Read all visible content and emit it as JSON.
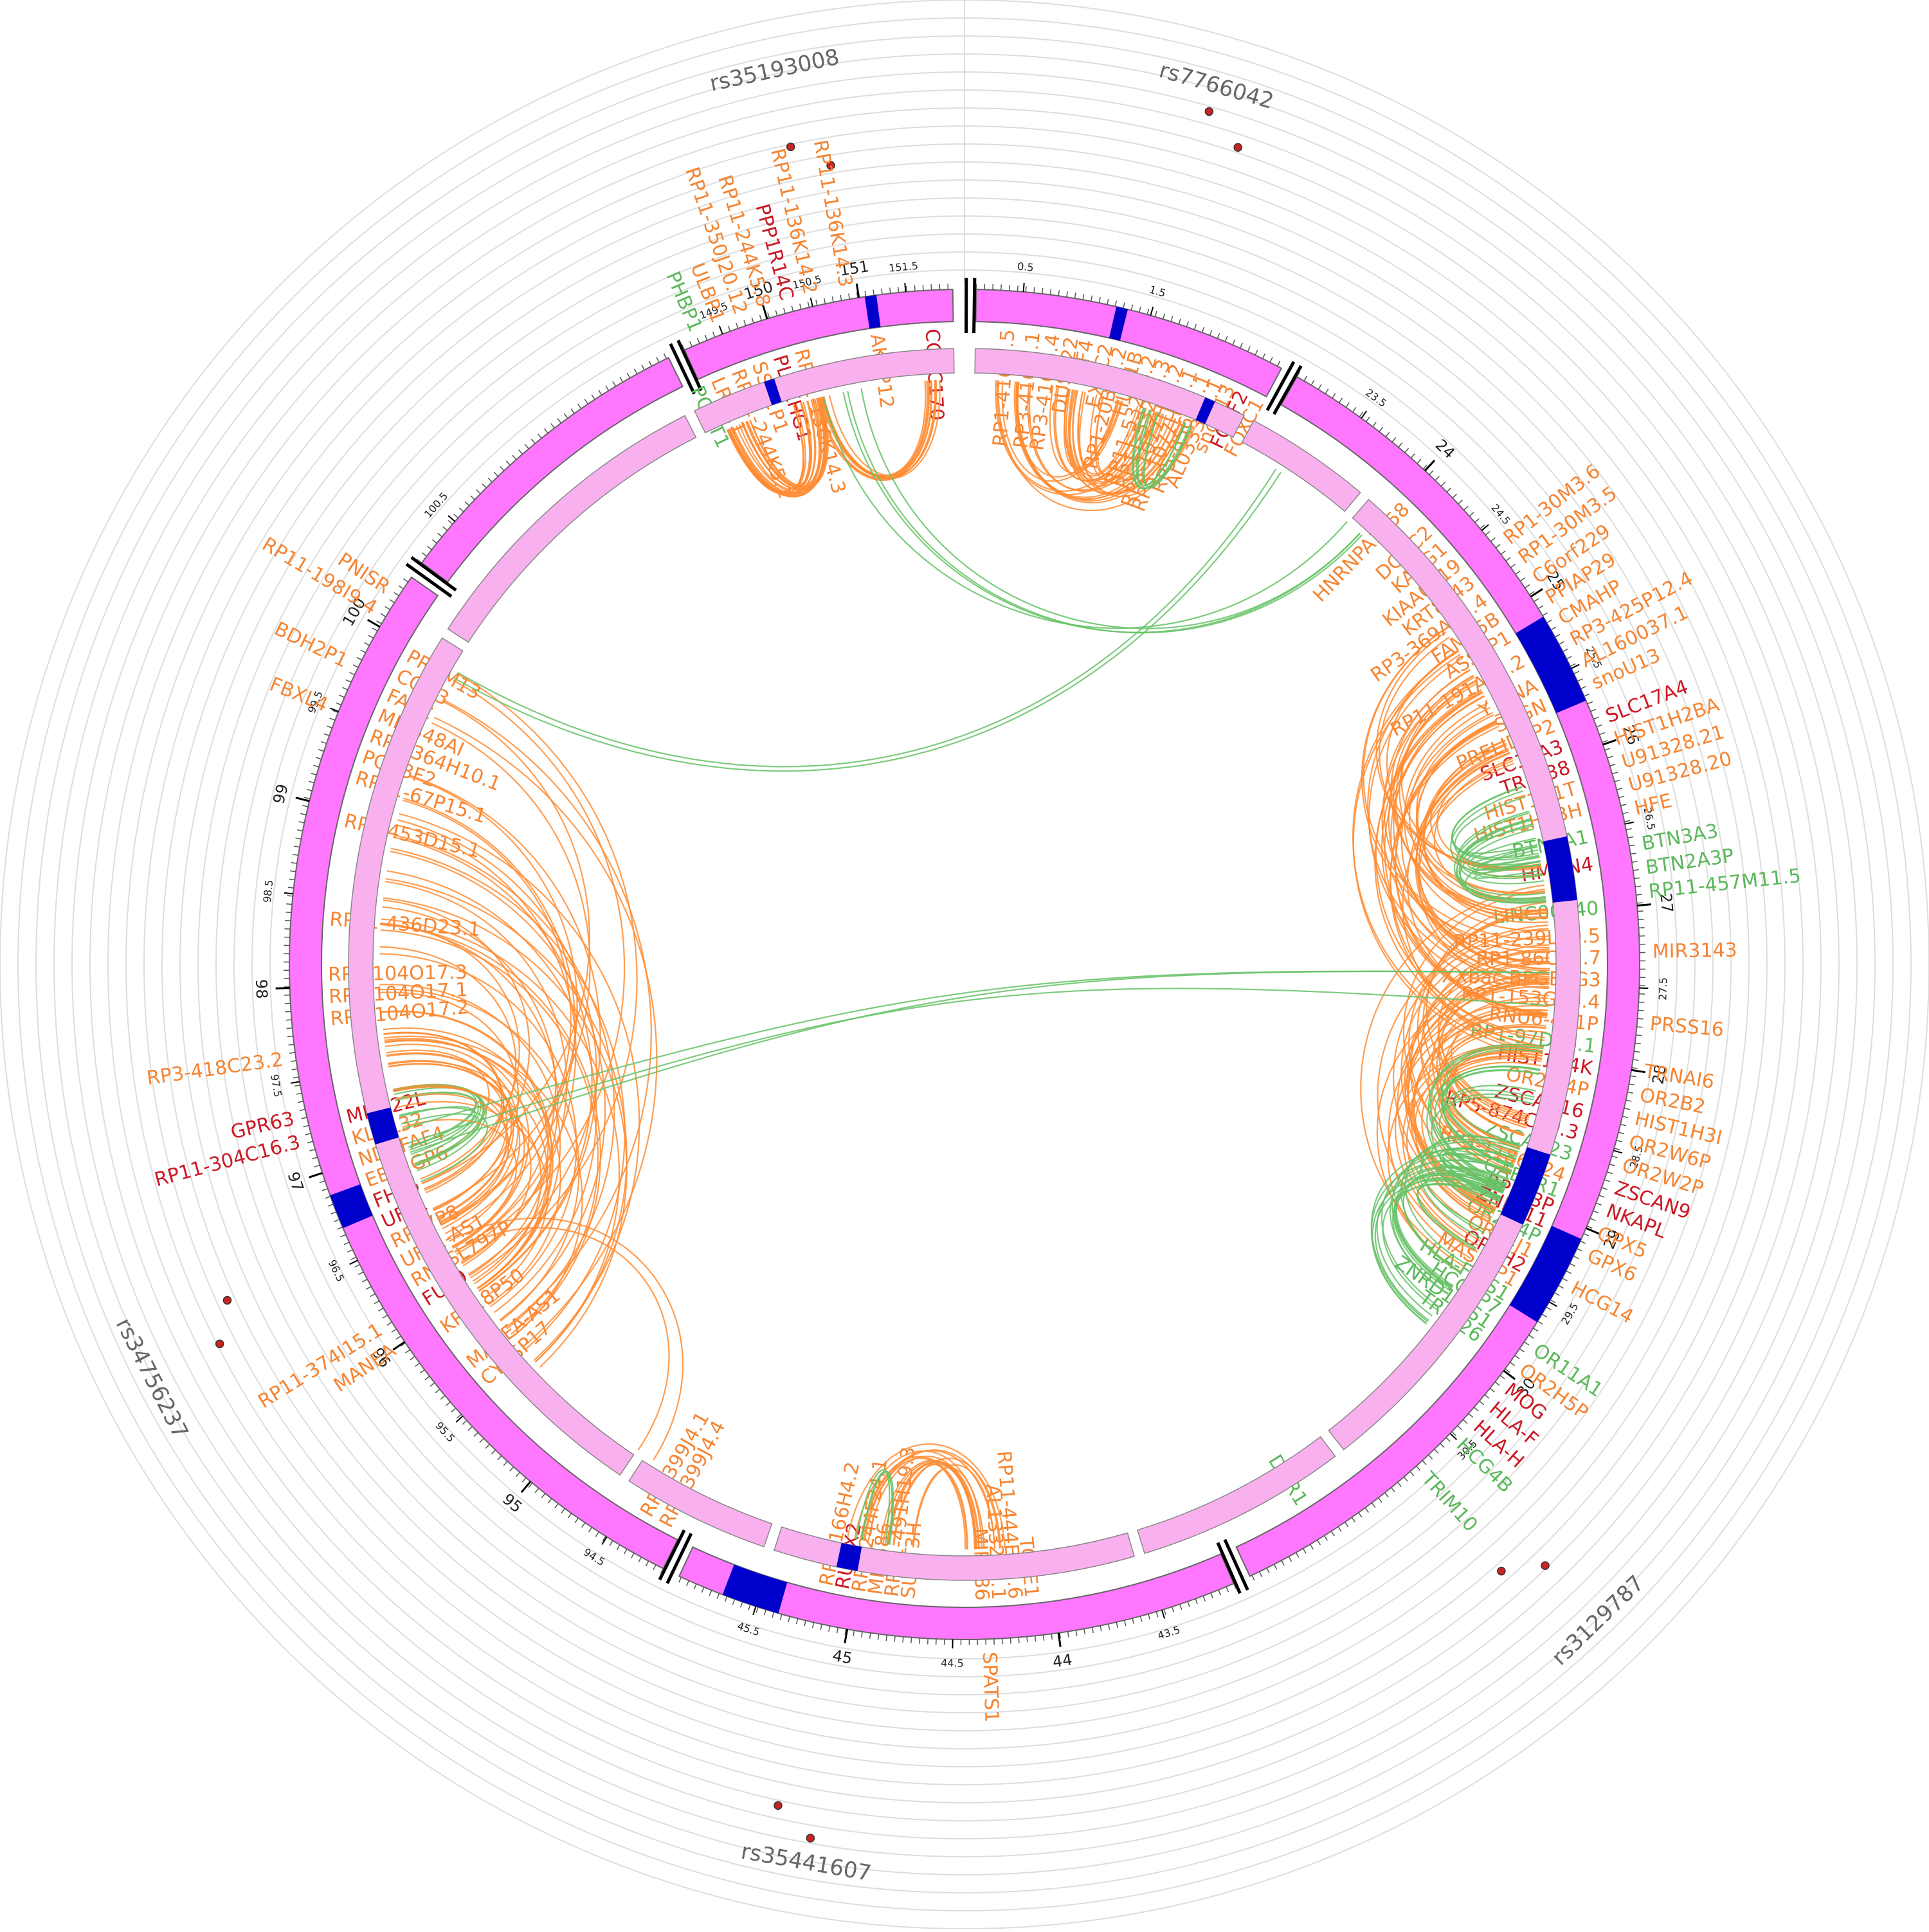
{
  "snps": [
    {
      "id": "rs35193008",
      "angle": -12
    },
    {
      "id": "rs7766042",
      "angle": 16
    },
    {
      "id": "rs3129787",
      "angle": 136
    },
    {
      "id": "rs35441607",
      "angle": 190
    },
    {
      "id": "rs34756237",
      "angle": 243
    }
  ],
  "colors": {
    "chrom": "#ff77ff",
    "chrom_stroke": "#666666",
    "highlight": "#0000cc",
    "inner_ring": "#f9b0ee",
    "link_orange": "#ff8c33",
    "link_green": "#66c266",
    "label_orange": "#f58533",
    "label_red": "#cc1a26",
    "label_green": "#5cb85c",
    "snp_dot": "#cc2222",
    "grid": "#dddddd"
  },
  "segments": [
    {
      "a0": 1,
      "a1": 28,
      "ticks": [
        {
          "label": "0.5",
          "angle": 5,
          "major": false
        },
        {
          "label": "1.5",
          "angle": 16,
          "major": false
        }
      ]
    },
    {
      "a0": 29.5,
      "a1": 155,
      "ticks": [
        {
          "label": "23.5",
          "angle": 36,
          "major": false
        },
        {
          "label": "24",
          "angle": 43,
          "major": true
        },
        {
          "label": "24.5",
          "angle": 50,
          "major": false
        },
        {
          "label": "25",
          "angle": 57,
          "major": true
        },
        {
          "label": "25.5",
          "angle": 64,
          "major": false
        },
        {
          "label": "26",
          "angle": 71,
          "major": true
        },
        {
          "label": "26.5",
          "angle": 78,
          "major": false
        },
        {
          "label": "27",
          "angle": 85,
          "major": true
        },
        {
          "label": "27.5",
          "angle": 92,
          "major": false
        },
        {
          "label": "28",
          "angle": 99,
          "major": true
        },
        {
          "label": "28.5",
          "angle": 106,
          "major": false
        },
        {
          "label": "29",
          "angle": 113,
          "major": true
        },
        {
          "label": "29.5",
          "angle": 120,
          "major": false
        },
        {
          "label": "30",
          "angle": 127,
          "major": true
        },
        {
          "label": "30.5",
          "angle": 134,
          "major": false
        }
      ]
    },
    {
      "a0": 156.5,
      "a1": 205,
      "ticks": [
        {
          "label": "43.5",
          "angle": 163,
          "major": false
        },
        {
          "label": "44",
          "angle": 172,
          "major": true
        },
        {
          "label": "44.5",
          "angle": 181,
          "major": false
        },
        {
          "label": "45",
          "angle": 190,
          "major": true
        },
        {
          "label": "45.5",
          "angle": 198,
          "major": false
        }
      ]
    },
    {
      "a0": 206.5,
      "a1": 305,
      "ticks": [
        {
          "label": "94.5",
          "angle": 212,
          "major": false
        },
        {
          "label": "95",
          "angle": 220,
          "major": true
        },
        {
          "label": "95.5",
          "angle": 228,
          "major": false
        },
        {
          "label": "96",
          "angle": 236,
          "major": true
        },
        {
          "label": "96.5",
          "angle": 244,
          "major": false
        },
        {
          "label": "97",
          "angle": 252,
          "major": true
        },
        {
          "label": "97.5",
          "angle": 260,
          "major": false
        },
        {
          "label": "98",
          "angle": 268,
          "major": true
        },
        {
          "label": "98.5",
          "angle": 276,
          "major": false
        },
        {
          "label": "99",
          "angle": 284,
          "major": true
        },
        {
          "label": "99.5",
          "angle": 292,
          "major": false
        },
        {
          "label": "100",
          "angle": 300,
          "major": true
        }
      ]
    },
    {
      "a0": 306.5,
      "a1": 334,
      "ticks": [
        {
          "label": "100.5",
          "angle": 311,
          "major": false
        }
      ]
    },
    {
      "a0": 335.5,
      "a1": 359,
      "ticks": [
        {
          "label": "149.5",
          "angle": 339,
          "major": false
        },
        {
          "label": "150",
          "angle": 343,
          "major": true
        },
        {
          "label": "150.5",
          "angle": 347,
          "major": false
        },
        {
          "label": "151",
          "angle": 351,
          "major": true
        },
        {
          "label": "151.5",
          "angle": 355,
          "major": false
        }
      ]
    }
  ],
  "inner_arcs": [
    {
      "a0": 1,
      "a1": 27
    },
    {
      "a0": 28,
      "a1": 40
    },
    {
      "a0": 41,
      "a1": 142
    },
    {
      "a0": 143,
      "a1": 163
    },
    {
      "a0": 164,
      "a1": 198
    },
    {
      "a0": 199,
      "a1": 213
    },
    {
      "a0": 214,
      "a1": 302
    },
    {
      "a0": 303,
      "a1": 333
    },
    {
      "a0": 334,
      "a1": 359
    }
  ],
  "highlights_outer": [
    {
      "a0": 13,
      "a1": 14
    },
    {
      "a0": 59,
      "a1": 67
    },
    {
      "a0": 114,
      "a1": 122
    },
    {
      "a0": 196,
      "a1": 201
    },
    {
      "a0": 247,
      "a1": 250
    },
    {
      "a0": 351.5,
      "a1": 352.5
    }
  ],
  "highlights_inner": [
    {
      "a0": 23,
      "a1": 24
    },
    {
      "a0": 78,
      "a1": 84
    },
    {
      "a0": 108,
      "a1": 115
    },
    {
      "a0": 190,
      "a1": 192
    },
    {
      "a0": 253,
      "a1": 256
    },
    {
      "a0": 341,
      "a1": 342
    }
  ],
  "link_bundles": [
    {
      "a0": 336,
      "a1": 339,
      "b0": 343,
      "b1": 346,
      "n": 22,
      "color": "orange"
    },
    {
      "a0": 345,
      "a1": 347,
      "b0": 356,
      "b1": 358,
      "n": 10,
      "color": "orange"
    },
    {
      "a0": 3,
      "a1": 14,
      "b0": 15,
      "b1": 24,
      "n": 30,
      "color": "orange"
    },
    {
      "a0": 22,
      "a1": 24,
      "b0": 17,
      "b1": 20,
      "n": 6,
      "color": "green"
    },
    {
      "a0": 55,
      "a1": 70,
      "b0": 80,
      "b1": 100,
      "n": 45,
      "color": "orange"
    },
    {
      "a0": 82,
      "a1": 100,
      "b0": 104,
      "b1": 122,
      "n": 45,
      "color": "orange"
    },
    {
      "a0": 72,
      "a1": 80,
      "b0": 78,
      "b1": 84,
      "n": 18,
      "color": "green"
    },
    {
      "a0": 108,
      "a1": 114,
      "b0": 112,
      "b1": 128,
      "n": 30,
      "color": "green"
    },
    {
      "a0": 98,
      "a1": 106,
      "b0": 108,
      "b1": 114,
      "n": 12,
      "color": "green"
    },
    {
      "a0": 176,
      "a1": 180,
      "b0": 185,
      "b1": 192,
      "n": 16,
      "color": "orange"
    },
    {
      "a0": 190,
      "a1": 191,
      "b0": 186,
      "b1": 188,
      "n": 3,
      "color": "green"
    },
    {
      "a0": 225,
      "a1": 250,
      "b0": 260,
      "b1": 300,
      "n": 40,
      "color": "orange"
    },
    {
      "a0": 248,
      "a1": 252,
      "b0": 254,
      "b1": 258,
      "n": 10,
      "color": "green"
    },
    {
      "a0": 235,
      "a1": 248,
      "b0": 252,
      "b1": 264,
      "n": 16,
      "color": "orange"
    },
    {
      "a0": 40,
      "a1": 44,
      "b0": 346,
      "b1": 350,
      "n": 4,
      "color": "green"
    },
    {
      "a0": 30,
      "a1": 33,
      "b0": 298,
      "b1": 300,
      "n": 2,
      "color": "green"
    },
    {
      "a0": 90,
      "a1": 95,
      "b0": 250,
      "b1": 254,
      "n": 3,
      "color": "green"
    },
    {
      "a0": 240,
      "a1": 246,
      "b0": 212,
      "b1": 214,
      "n": 2,
      "color": "orange"
    }
  ],
  "labels_in": [
    {
      "t": "RP1-416J7.5",
      "a": 4,
      "c": "o"
    },
    {
      "t": "RP3-416J7.1",
      "a": 6.3,
      "c": "o"
    },
    {
      "t": "RP3-416J7.4",
      "a": 8.1,
      "c": "o"
    },
    {
      "t": "DUSP22",
      "a": 9.8,
      "c": "o"
    },
    {
      "t": "IRF4",
      "a": 11.2,
      "c": "o"
    },
    {
      "t": "EXOC2",
      "a": 13,
      "c": "o"
    },
    {
      "t": "RP1-20B11.2",
      "a": 14.3,
      "c": "o"
    },
    {
      "t": "HUS1B",
      "a": 15.8,
      "c": "o"
    },
    {
      "t": "RP11-532F6.2",
      "a": 17.1,
      "c": "o"
    },
    {
      "t": "RP11-532F6.3",
      "a": 18.4,
      "c": "o"
    },
    {
      "t": "RP5-1077H22.2",
      "a": 19.7,
      "c": "o"
    },
    {
      "t": "RP5-1077H22.1",
      "a": 21,
      "c": "o"
    },
    {
      "t": "RP5-856G1.1",
      "a": 22.3,
      "c": "o"
    },
    {
      "t": "AL033381.1",
      "a": 23.5,
      "c": "o"
    },
    {
      "t": "snoU13",
      "a": 24.7,
      "c": "o"
    },
    {
      "t": "FOXF2",
      "a": 26,
      "c": "r"
    },
    {
      "t": "FOXC1",
      "a": 27.6,
      "c": "o"
    },
    {
      "t": "HNRNPA1P58",
      "a": 44,
      "c": "o"
    },
    {
      "t": "DCDC2",
      "a": 47,
      "c": "o"
    },
    {
      "t": "KAAG1",
      "a": 49,
      "c": "o"
    },
    {
      "t": "KIAA0319",
      "a": 51,
      "c": "o"
    },
    {
      "t": "KRT8P43",
      "a": 53,
      "c": "o"
    },
    {
      "t": "RP3-369A17.4",
      "a": 55,
      "c": "o"
    },
    {
      "t": "FAM65B",
      "a": 57,
      "c": "o"
    },
    {
      "t": "ASS1P1",
      "a": 59,
      "c": "o"
    },
    {
      "t": "RP11-191A15.2",
      "a": 61.5,
      "c": "o"
    },
    {
      "t": "Y_RNA",
      "a": 64,
      "c": "o"
    },
    {
      "t": "SCGN",
      "a": 66,
      "c": "o"
    },
    {
      "t": "PRELID1P2",
      "a": 68,
      "c": "o"
    },
    {
      "t": "SLC17A3",
      "a": 70,
      "c": "r"
    },
    {
      "t": "TRIM38",
      "a": 72,
      "c": "r"
    },
    {
      "t": "HIST1H1T",
      "a": 74,
      "c": "o"
    },
    {
      "t": "HIST1H2BH",
      "a": 76,
      "c": "o"
    },
    {
      "t": "BTN3A1",
      "a": 78.5,
      "c": "g"
    },
    {
      "t": "HMGN4",
      "a": 81,
      "c": "r"
    },
    {
      "t": "LINC00240",
      "a": 85,
      "c": "g"
    },
    {
      "t": "RP11-239L20.5",
      "a": 87.5,
      "c": "o"
    },
    {
      "t": "RP1-86C11.7",
      "a": 89.5,
      "c": "o"
    },
    {
      "t": "XXbac-BPGBPG3",
      "a": 91.5,
      "c": "o"
    },
    {
      "t": "RP1-153G14.4",
      "a": 93.5,
      "c": "o"
    },
    {
      "t": "RNU6-471P",
      "a": 95.5,
      "c": "o"
    },
    {
      "t": "RP1-97D16.1",
      "a": 97.5,
      "c": "g"
    },
    {
      "t": "HIST1H4K",
      "a": 99.5,
      "c": "r"
    },
    {
      "t": "OR2W4P",
      "a": 101.5,
      "c": "o"
    },
    {
      "t": "ZSCAN16",
      "a": 103.5,
      "c": "r"
    },
    {
      "t": "RP5-874C20.3",
      "a": 105.5,
      "c": "r"
    },
    {
      "t": "ZSCAN23",
      "a": 107.5,
      "c": "g"
    },
    {
      "t": "RP3-1186N24",
      "a": 109.5,
      "c": "o"
    },
    {
      "t": "GABBR1",
      "a": 111,
      "c": "g"
    },
    {
      "t": "RPL13P",
      "a": 112.5,
      "c": "r"
    },
    {
      "t": "ZNF311",
      "a": 114,
      "c": "r"
    },
    {
      "t": "OR2H4P",
      "a": 115.5,
      "c": "g"
    },
    {
      "t": "OR14J1",
      "a": 117,
      "c": "o"
    },
    {
      "t": "OR2H2",
      "a": 118.5,
      "c": "r"
    },
    {
      "t": "MAS1LP1",
      "a": 120,
      "c": "o"
    },
    {
      "t": "HLA-F-AS1",
      "a": 121.5,
      "c": "g"
    },
    {
      "t": "HCG4P7",
      "a": 123,
      "c": "g"
    },
    {
      "t": "ZNRD1-AS1",
      "a": 124.5,
      "c": "g"
    },
    {
      "t": "TRIM26",
      "a": 126,
      "c": "g"
    },
    {
      "t": "DDR1",
      "a": 148,
      "c": "g"
    },
    {
      "t": "TCTE1",
      "a": 174,
      "c": "o"
    },
    {
      "t": "RP11-444E17.6",
      "a": 175.5,
      "c": "o"
    },
    {
      "t": "AL133262.1",
      "a": 177,
      "c": "o"
    },
    {
      "t": "MIR586",
      "a": 178.5,
      "c": "o"
    },
    {
      "t": "SUPT3H",
      "a": 185,
      "c": "o"
    },
    {
      "t": "RP11-491H19.3",
      "a": 186.5,
      "c": "o"
    },
    {
      "t": "MIR586",
      "a": 188,
      "c": "o"
    },
    {
      "t": "RP1-244F24.1",
      "a": 189.5,
      "c": "o"
    },
    {
      "t": "RUNX2",
      "a": 191,
      "c": "r"
    },
    {
      "t": "RP1-166H4.2",
      "a": 192.5,
      "c": "o"
    },
    {
      "t": "RP3-399J4.4",
      "a": 208,
      "c": "o"
    },
    {
      "t": "RP3-399J4.1",
      "a": 210,
      "c": "o"
    },
    {
      "t": "CYCSP17",
      "a": 229,
      "c": "o"
    },
    {
      "t": "MANEA-AS1",
      "a": 231,
      "c": "o"
    },
    {
      "t": "KRT18P50",
      "a": 235,
      "c": "o"
    },
    {
      "t": "FUT9",
      "a": 238,
      "c": "r"
    },
    {
      "t": "RN7SL797P",
      "a": 240,
      "c": "o"
    },
    {
      "t": "UFL1-AS1",
      "a": 242,
      "c": "o"
    },
    {
      "t": "RPS7P8",
      "a": 244,
      "c": "o"
    },
    {
      "t": "UFL1",
      "a": 246,
      "c": "r"
    },
    {
      "t": "FHL5",
      "a": 248,
      "c": "r"
    },
    {
      "t": "EEF1GP6",
      "a": 250,
      "c": "o"
    },
    {
      "t": "NDUFAF4",
      "a": 252,
      "c": "o"
    },
    {
      "t": "KLHL32",
      "a": 254,
      "c": "o"
    },
    {
      "t": "MMS22L",
      "a": 256,
      "c": "r"
    },
    {
      "t": "RP1-104O17.2",
      "a": 265,
      "c": "o"
    },
    {
      "t": "RP1-104O17.1",
      "a": 267,
      "c": "o"
    },
    {
      "t": "RP1-104O17.3",
      "a": 269,
      "c": "o"
    },
    {
      "t": "RP11-436D23.1",
      "a": 274,
      "c": "o"
    },
    {
      "t": "RP3-453D15.1",
      "a": 283,
      "c": "o"
    },
    {
      "t": "RP11-67P15.1",
      "a": 287,
      "c": "o"
    },
    {
      "t": "POU3F2",
      "a": 289,
      "c": "o"
    },
    {
      "t": "RP3-364H10.1",
      "a": 291,
      "c": "o"
    },
    {
      "t": "MIR548AI",
      "a": 293,
      "c": "o"
    },
    {
      "t": "FAXC",
      "a": 295,
      "c": "o"
    },
    {
      "t": "COQ3",
      "a": 297,
      "c": "o"
    },
    {
      "t": "PRDM13",
      "a": 299,
      "c": "o"
    },
    {
      "t": "PCMT1",
      "a": 335,
      "c": "g"
    },
    {
      "t": "LRP11",
      "a": 337,
      "c": "o"
    },
    {
      "t": "RP11-244K5.1",
      "a": 339,
      "c": "o"
    },
    {
      "t": "SSR1P1",
      "a": 341,
      "c": "o"
    },
    {
      "t": "PLEKHG1",
      "a": 343,
      "c": "r"
    },
    {
      "t": "RP11-136K14.3",
      "a": 345,
      "c": "o"
    },
    {
      "t": "AKAP12",
      "a": 352,
      "c": "o"
    },
    {
      "t": "CCDC170",
      "a": 357,
      "c": "r"
    }
  ],
  "labels_out": [
    {
      "t": "RP1-30M3.6",
      "a": 52,
      "c": "o"
    },
    {
      "t": "RP1-30M3.5",
      "a": 54,
      "c": "o"
    },
    {
      "t": "C6orf229",
      "a": 56,
      "c": "o"
    },
    {
      "t": "PPIAP29",
      "a": 58,
      "c": "o"
    },
    {
      "t": "CMAHP",
      "a": 60,
      "c": "o"
    },
    {
      "t": "RP3-425P12.4",
      "a": 62,
      "c": "o"
    },
    {
      "t": "AL160037.1",
      "a": 64,
      "c": "o"
    },
    {
      "t": "snoU13",
      "a": 66,
      "c": "o"
    },
    {
      "t": "SLC17A4",
      "a": 69,
      "c": "r"
    },
    {
      "t": "HIST1H2BA",
      "a": 71,
      "c": "o"
    },
    {
      "t": "U91328.21",
      "a": 73,
      "c": "o"
    },
    {
      "t": "U91328.20",
      "a": 75,
      "c": "o"
    },
    {
      "t": "HFE",
      "a": 77,
      "c": "o"
    },
    {
      "t": "BTN3A3",
      "a": 80,
      "c": "g"
    },
    {
      "t": "BTN2A3P",
      "a": 82,
      "c": "g"
    },
    {
      "t": "RP11-457M11.5",
      "a": 84,
      "c": "g"
    },
    {
      "t": "MIR3143",
      "a": 89,
      "c": "o"
    },
    {
      "t": "PRSS16",
      "a": 95,
      "c": "o"
    },
    {
      "t": "TRNAI6",
      "a": 99,
      "c": "o"
    },
    {
      "t": "OR2B2",
      "a": 101,
      "c": "o"
    },
    {
      "t": "HIST1H3I",
      "a": 103,
      "c": "o"
    },
    {
      "t": "OR2W6P",
      "a": 105,
      "c": "o"
    },
    {
      "t": "OR2W2P",
      "a": 107,
      "c": "o"
    },
    {
      "t": "ZSCAN9",
      "a": 109,
      "c": "r"
    },
    {
      "t": "NKAPL",
      "a": 111,
      "c": "r"
    },
    {
      "t": "GPX5",
      "a": 113,
      "c": "o"
    },
    {
      "t": "GPX6",
      "a": 115,
      "c": "o"
    },
    {
      "t": "HCG14",
      "a": 118,
      "c": "o"
    },
    {
      "t": "OR11A1",
      "a": 124,
      "c": "g"
    },
    {
      "t": "OR2H5P",
      "a": 126,
      "c": "o"
    },
    {
      "t": "MOG",
      "a": 128,
      "c": "r"
    },
    {
      "t": "HLA-F",
      "a": 130,
      "c": "r"
    },
    {
      "t": "HLA-H",
      "a": 132,
      "c": "r"
    },
    {
      "t": "HCG4B",
      "a": 134,
      "c": "g"
    },
    {
      "t": "TRIM10",
      "a": 138,
      "c": "g"
    },
    {
      "t": "SPATS1",
      "a": 178,
      "c": "o"
    },
    {
      "t": "RP11-374I15.1",
      "a": 238,
      "c": "o"
    },
    {
      "t": "MANEA",
      "a": 236,
      "c": "o"
    },
    {
      "t": "RP11-304C16.3",
      "a": 255,
      "c": "r"
    },
    {
      "t": "GPR63",
      "a": 257,
      "c": "r"
    },
    {
      "t": "RP3-418C23.2",
      "a": 262,
      "c": "o"
    },
    {
      "t": "RP11-198I9.4",
      "a": 301,
      "c": "o"
    },
    {
      "t": "PNISR",
      "a": 303,
      "c": "o"
    },
    {
      "t": "BDH2P1",
      "a": 296,
      "c": "o"
    },
    {
      "t": "FBXL4",
      "a": 292,
      "c": "o"
    },
    {
      "t": "PHBP1",
      "a": 337,
      "c": "g"
    },
    {
      "t": "ULBP1",
      "a": 339,
      "c": "o"
    },
    {
      "t": "RP11-350J20.12",
      "a": 341,
      "c": "o"
    },
    {
      "t": "RP11-244K5.8",
      "a": 343,
      "c": "o"
    },
    {
      "t": "PPP1R14C",
      "a": 345,
      "c": "r"
    },
    {
      "t": "RP11-136K14.2",
      "a": 347,
      "c": "o"
    },
    {
      "t": "RP11-136K14.3",
      "a": 350,
      "c": "o"
    }
  ]
}
